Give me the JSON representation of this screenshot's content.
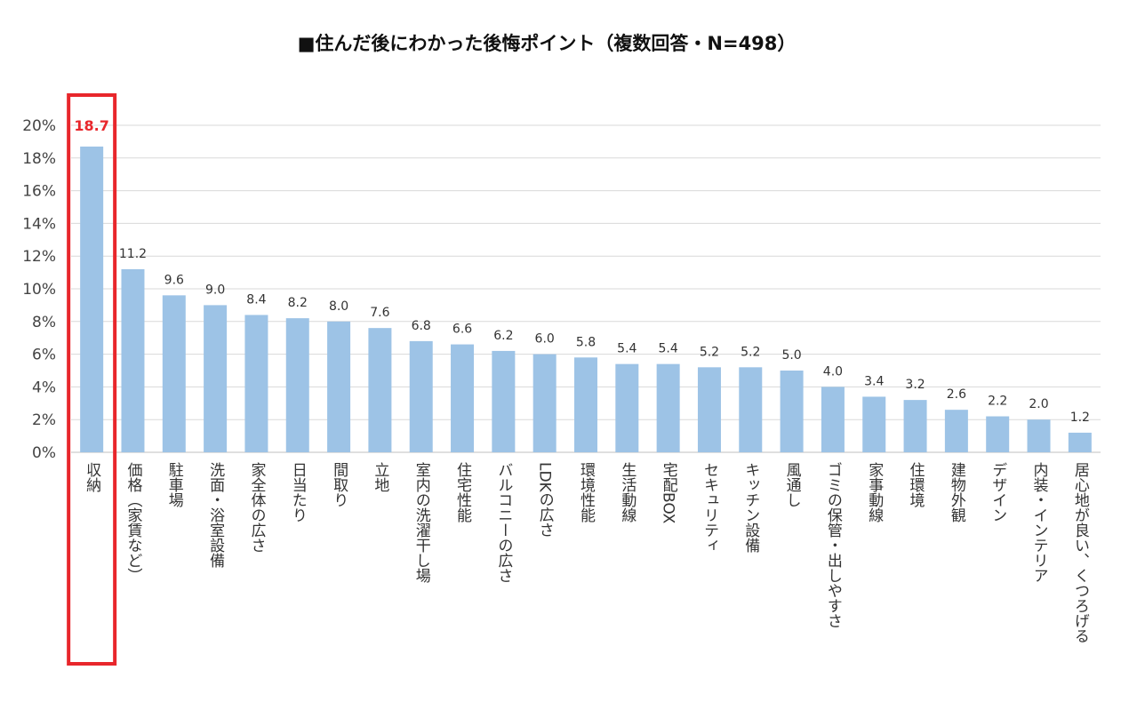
{
  "chart_data": {
    "type": "bar",
    "title": "■住んだ後にわかった後悔ポイント（複数回答・N=498）",
    "xlabel": "",
    "ylabel": "",
    "ylim": [
      0,
      20
    ],
    "y_ticks": [
      "0%",
      "2%",
      "4%",
      "6%",
      "8%",
      "10%",
      "12%",
      "14%",
      "16%",
      "18%",
      "20%"
    ],
    "grid": true,
    "categories": [
      "収納",
      "価格（家賃など）",
      "駐車場",
      "洗面・浴室設備",
      "家全体の広さ",
      "日当たり",
      "間取り",
      "立地",
      "室内の洗濯干し場",
      "住宅性能",
      "バルコニーの広さ",
      "LDKの広さ",
      "環境性能",
      "生活動線",
      "宅配BOX",
      "セキュリティ",
      "キッチン設備",
      "風通し",
      "ゴミの保管・出しやすさ",
      "家事動線",
      "住環境",
      "建物外観",
      "デザイン",
      "内装・インテリア",
      "居心地が良い、くつろげる"
    ],
    "values": [
      18.7,
      11.2,
      9.6,
      9.0,
      8.4,
      8.2,
      8.0,
      7.6,
      6.8,
      6.6,
      6.2,
      6.0,
      5.8,
      5.4,
      5.4,
      5.2,
      5.2,
      5.0,
      4.0,
      3.4,
      3.2,
      2.6,
      2.2,
      2.0,
      1.2
    ],
    "value_labels": [
      "18.7",
      "11.2",
      "9.6",
      "9.0",
      "8.4",
      "8.2",
      "8.0",
      "7.6",
      "6.8",
      "6.6",
      "6.2",
      "6.0",
      "5.8",
      "5.4",
      "5.4",
      "5.2",
      "5.2",
      "5.0",
      "4.0",
      "3.4",
      "3.2",
      "2.6",
      "2.2",
      "2.0",
      "1.2"
    ],
    "highlight_index": 0,
    "colors": {
      "bar": "#9dc3e6",
      "highlight_box": "#e8262b",
      "highlight_label": "#e8262b",
      "grid": "#d9d9d9"
    }
  }
}
